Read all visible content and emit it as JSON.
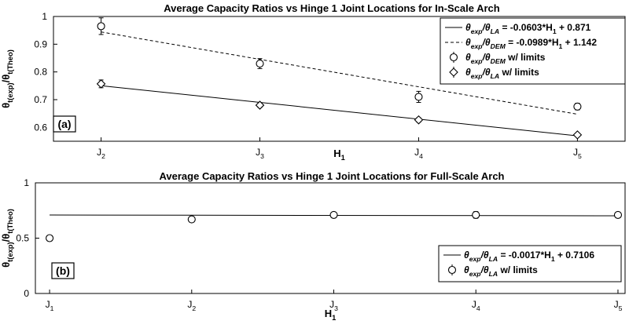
{
  "chart_data": [
    {
      "type": "scatter",
      "panel_label": "(a)",
      "title": "Average Capacity Ratios vs Hinge 1 Joint Locations for In-Scale Arch",
      "xlabel": {
        "main": "H",
        "sub": "1"
      },
      "ylabel": {
        "parts": [
          {
            "t": "θ"
          },
          {
            "t": "t(exp)",
            "sub": true
          },
          {
            "t": "/θ"
          },
          {
            "t": "t(Theo)",
            "sub": true
          }
        ]
      },
      "ylim": [
        0.55,
        1.0
      ],
      "yticks": [
        0.6,
        0.7,
        0.8,
        0.9,
        1.0
      ],
      "ytick_labels": [
        "0.6",
        "0.7",
        "0.8",
        "0.9",
        "1"
      ],
      "xlim": [
        1.7,
        5.3
      ],
      "x_categories": [
        {
          "x": 2,
          "main": "J",
          "sub": "2"
        },
        {
          "x": 3,
          "main": "J",
          "sub": "3"
        },
        {
          "x": 4,
          "main": "J",
          "sub": "4"
        },
        {
          "x": 5,
          "main": "J",
          "sub": "5"
        }
      ],
      "fit_lines": [
        {
          "style": "solid",
          "slope": -0.0603,
          "intercept": 0.871
        },
        {
          "style": "dashed",
          "slope": -0.0989,
          "intercept": 1.142
        }
      ],
      "series": [
        {
          "marker": "circle",
          "x": [
            2,
            3,
            4,
            5
          ],
          "y": [
            0.965,
            0.83,
            0.71,
            0.675
          ],
          "err": [
            0.03,
            0.018,
            0.02,
            0.012
          ]
        },
        {
          "marker": "diamond",
          "x": [
            2,
            3,
            4,
            5
          ],
          "y": [
            0.757,
            0.68,
            0.627,
            0.573
          ],
          "err": [
            0.014,
            0.008,
            0.008,
            0.006
          ]
        }
      ],
      "legend": {
        "placement": "top-right",
        "entries": [
          {
            "style": "solid",
            "parts": [
              {
                "t": "θ",
                "i": true
              },
              {
                "t": "exp",
                "sub": true,
                "i": true
              },
              {
                "t": "/θ",
                "i": true
              },
              {
                "t": "LA",
                "sub": true,
                "i": true
              },
              {
                "t": " = -0.0603*H"
              },
              {
                "t": "1",
                "sub": true
              },
              {
                "t": " + 0.871"
              }
            ]
          },
          {
            "style": "dashed",
            "parts": [
              {
                "t": "θ",
                "i": true
              },
              {
                "t": "exp",
                "sub": true,
                "i": true
              },
              {
                "t": "/θ",
                "i": true
              },
              {
                "t": "DEM",
                "sub": true,
                "i": true
              },
              {
                "t": " = -0.0989*H"
              },
              {
                "t": "1",
                "sub": true
              },
              {
                "t": " + 1.142"
              }
            ]
          },
          {
            "style": "circle",
            "parts": [
              {
                "t": "θ",
                "i": true
              },
              {
                "t": "exp",
                "sub": true,
                "i": true
              },
              {
                "t": "/θ",
                "i": true
              },
              {
                "t": "DEM",
                "sub": true,
                "i": true
              },
              {
                "t": " w/ limits"
              }
            ]
          },
          {
            "style": "diamond",
            "parts": [
              {
                "t": "θ",
                "i": true
              },
              {
                "t": "exp",
                "sub": true,
                "i": true
              },
              {
                "t": "/θ",
                "i": true
              },
              {
                "t": "LA",
                "sub": true,
                "i": true
              },
              {
                "t": " w/ limits"
              }
            ]
          }
        ]
      }
    },
    {
      "type": "scatter",
      "panel_label": "(b)",
      "title": "Average Capacity Ratios vs Hinge 1 Joint Locations for Full-Scale Arch",
      "xlabel": {
        "main": "H",
        "sub": "1"
      },
      "ylabel": {
        "parts": [
          {
            "t": "θ"
          },
          {
            "t": "t(exp)",
            "sub": true
          },
          {
            "t": "/θ"
          },
          {
            "t": "t(Theo)",
            "sub": true
          }
        ]
      },
      "ylim": [
        0,
        1
      ],
      "yticks": [
        0,
        0.5,
        1
      ],
      "ytick_labels": [
        "0",
        "0.5",
        "1"
      ],
      "xlim": [
        0.9,
        5.05
      ],
      "x_categories": [
        {
          "x": 1,
          "main": "J",
          "sub": "1"
        },
        {
          "x": 2,
          "main": "J",
          "sub": "2"
        },
        {
          "x": 3,
          "main": "J",
          "sub": "3"
        },
        {
          "x": 4,
          "main": "J",
          "sub": "4"
        },
        {
          "x": 5,
          "main": "J",
          "sub": "5"
        }
      ],
      "fit_lines": [
        {
          "style": "solid",
          "slope": -0.0017,
          "intercept": 0.7106
        }
      ],
      "series": [
        {
          "marker": "circle",
          "x": [
            1,
            2,
            3,
            4,
            5
          ],
          "y": [
            0.5,
            0.67,
            0.71,
            0.71,
            0.71
          ],
          "err": [
            0,
            0.015,
            0.02,
            0.03,
            0.01
          ]
        }
      ],
      "legend": {
        "placement": "bottom-right",
        "entries": [
          {
            "style": "solid",
            "parts": [
              {
                "t": "θ",
                "i": true
              },
              {
                "t": "exp",
                "sub": true,
                "i": true
              },
              {
                "t": "/θ",
                "i": true
              },
              {
                "t": "LA",
                "sub": true,
                "i": true
              },
              {
                "t": " = -0.0017*H"
              },
              {
                "t": "1",
                "sub": true
              },
              {
                "t": " + 0.7106"
              }
            ]
          },
          {
            "style": "circle",
            "parts": [
              {
                "t": "θ",
                "i": true
              },
              {
                "t": "exp",
                "sub": true,
                "i": true
              },
              {
                "t": "/θ",
                "i": true
              },
              {
                "t": "LA",
                "sub": true,
                "i": true
              },
              {
                "t": " w/ limits"
              }
            ]
          }
        ]
      }
    }
  ]
}
